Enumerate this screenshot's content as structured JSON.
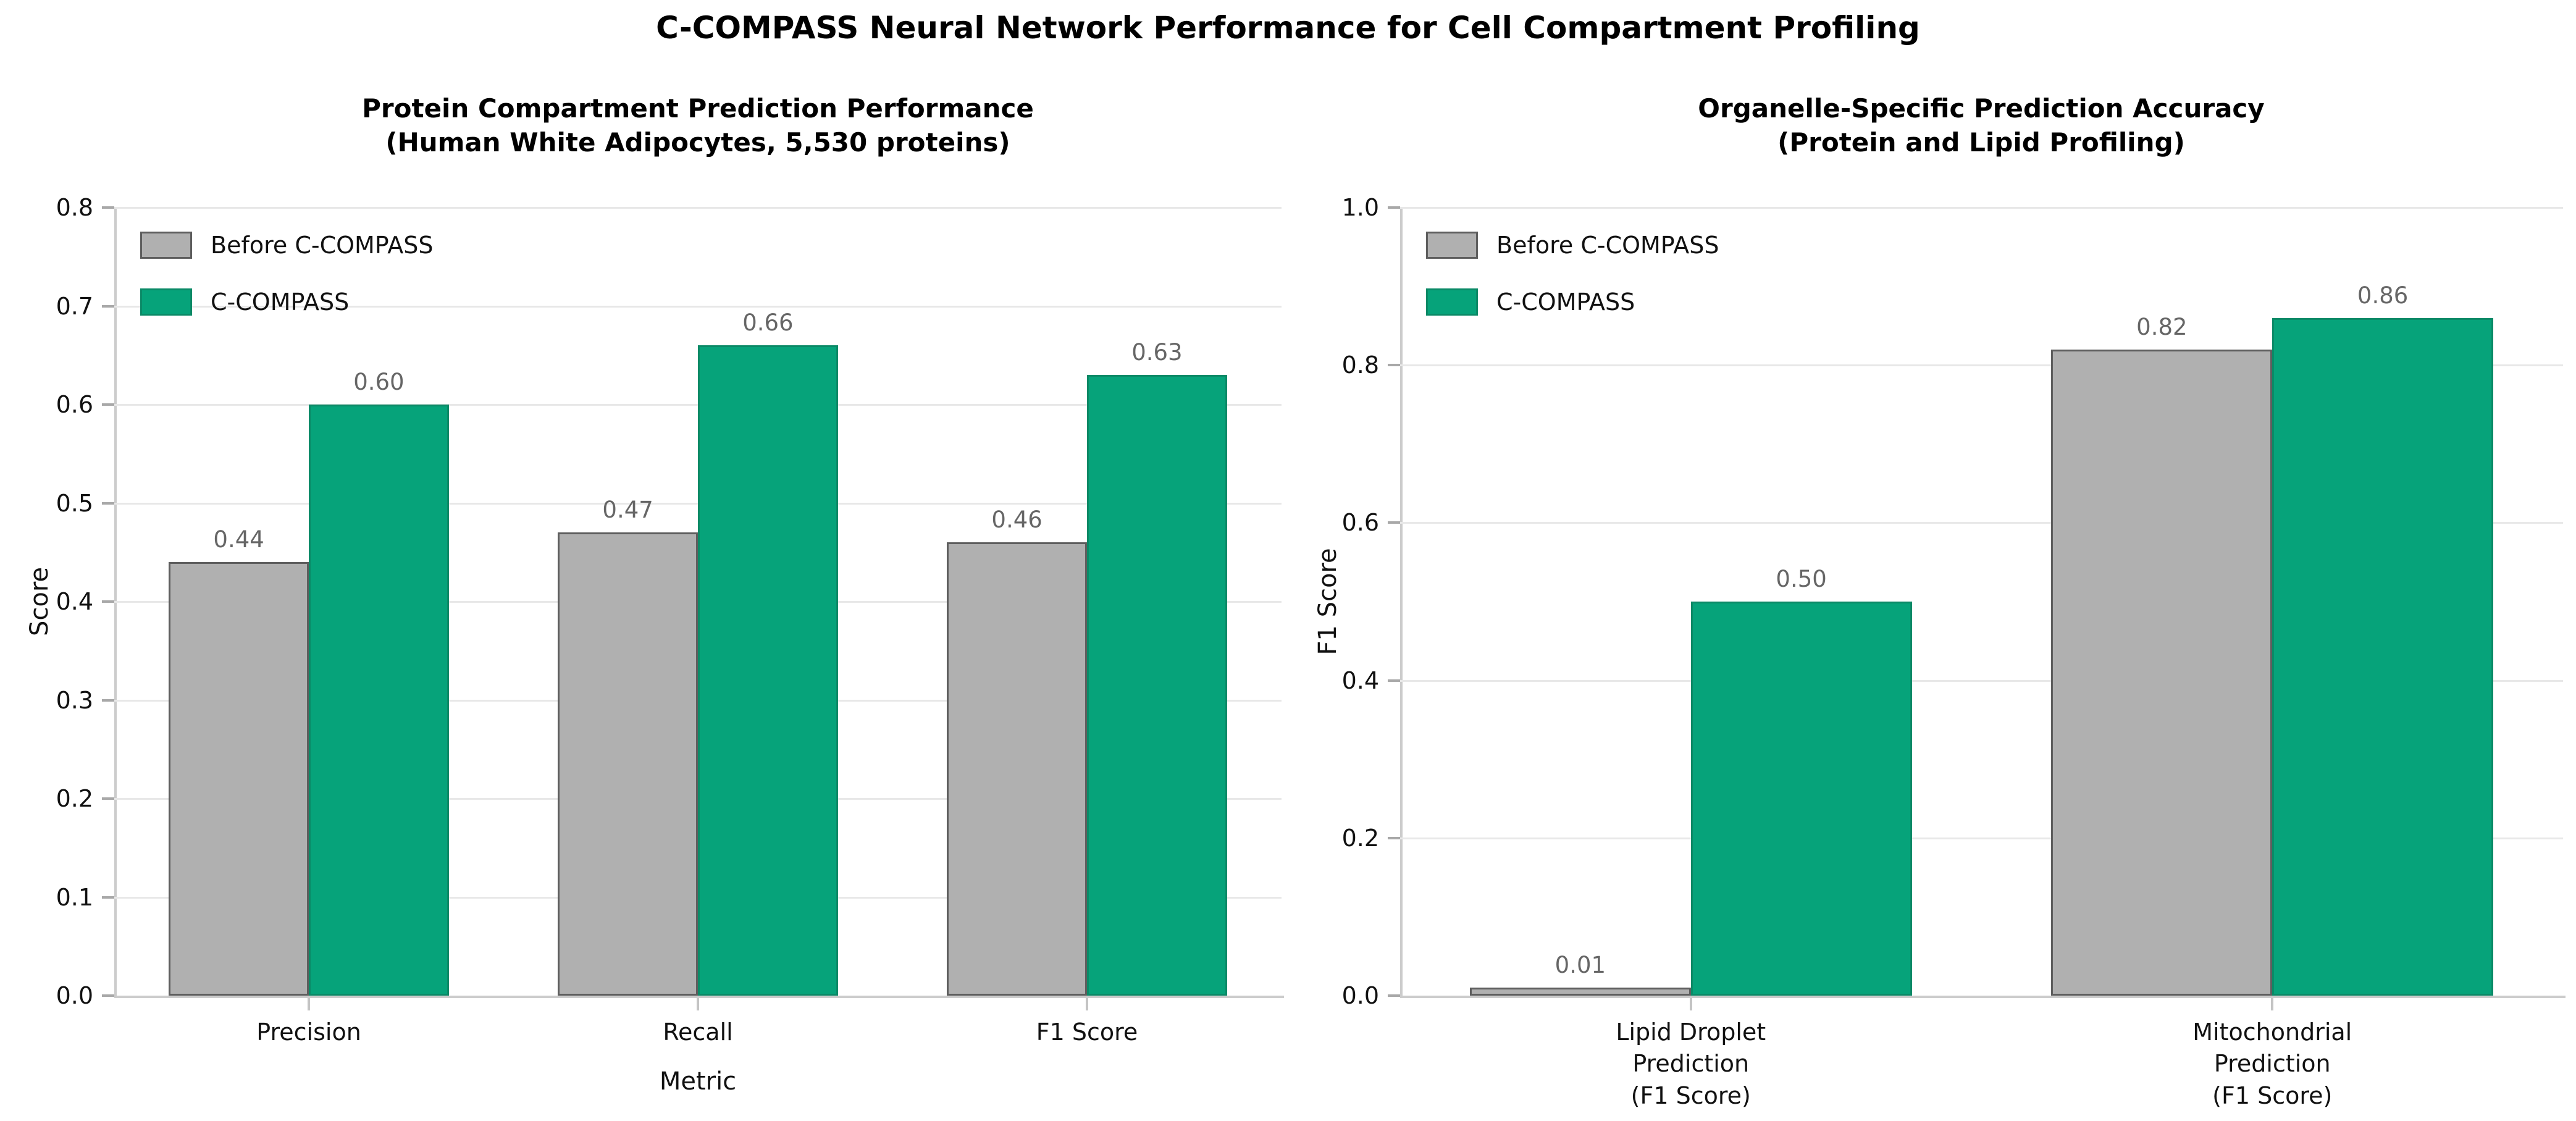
{
  "figure": {
    "title": "C-COMPASS Neural Network Performance for Cell Compartment Profiling"
  },
  "colors": {
    "before_fill": "#b0b0b0",
    "before_edge": "#5e5e5e",
    "ccompass_fill": "#06a37a",
    "ccompass_edge": "#0b8a67",
    "value_label": "#666666",
    "gridline": "#e8e8e8",
    "axis_spine": "#cccccc"
  },
  "chart_data": [
    {
      "type": "bar",
      "title": "Protein Compartment Prediction Performance\n(Human White Adipocytes, 5,530 proteins)",
      "categories": [
        "Precision",
        "Recall",
        "F1 Score"
      ],
      "series": [
        {
          "name": "Before C-COMPASS",
          "color": "#b0b0b0",
          "edge": "#5e5e5e",
          "values": [
            0.44,
            0.47,
            0.46
          ]
        },
        {
          "name": "C-COMPASS",
          "color": "#06a37a",
          "edge": "#0b8a67",
          "values": [
            0.6,
            0.66,
            0.63
          ]
        }
      ],
      "xlabel": "Metric",
      "ylabel": "Score",
      "ylim": [
        0.0,
        0.8
      ],
      "ytick_step": 0.1,
      "ytick_decimals": 1,
      "value_label_decimals": 2,
      "grid": true,
      "legend_position": "upper left"
    },
    {
      "type": "bar",
      "title": "Organelle-Specific Prediction Accuracy\n(Protein and Lipid Profiling)",
      "categories": [
        "Lipid Droplet\nPrediction\n(F1 Score)",
        "Mitochondrial\nPrediction\n(F1 Score)"
      ],
      "series": [
        {
          "name": "Before C-COMPASS",
          "color": "#b0b0b0",
          "edge": "#5e5e5e",
          "values": [
            0.01,
            0.82
          ]
        },
        {
          "name": "C-COMPASS",
          "color": "#06a37a",
          "edge": "#0b8a67",
          "values": [
            0.5,
            0.86
          ]
        }
      ],
      "xlabel": "",
      "ylabel": "F1 Score",
      "ylim": [
        0.0,
        1.0
      ],
      "ytick_step": 0.2,
      "ytick_decimals": 1,
      "value_label_decimals": 2,
      "grid": true,
      "legend_position": "upper left"
    }
  ]
}
